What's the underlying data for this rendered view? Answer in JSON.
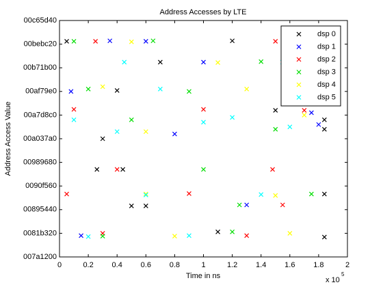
{
  "chart_data": {
    "type": "scatter",
    "title": "Address Accesses by LTE",
    "x_label": "Time in ns",
    "y_label": "Address Access Value",
    "x_multiplier": {
      "base": "x 10",
      "exponent": "5"
    },
    "xlim": [
      0,
      200000
    ],
    "xticks": [
      0,
      {
        "value": 20000,
        "label": "0.2"
      },
      {
        "value": 40000,
        "label": "0.4"
      },
      {
        "value": 60000,
        "label": "0.6"
      },
      {
        "value": 80000,
        "label": "0.8"
      },
      {
        "value": 100000,
        "label": "1"
      },
      {
        "value": 120000,
        "label": "1.2"
      },
      {
        "value": 140000,
        "label": "1.4"
      },
      {
        "value": 160000,
        "label": "1.6"
      },
      {
        "value": 180000,
        "label": "1.8"
      },
      {
        "value": 200000,
        "label": "2"
      }
    ],
    "ylim": [
      8000000,
      13000000
    ],
    "yticks": [
      {
        "value": 8000000,
        "label": "007a1200"
      },
      {
        "value": 8500000,
        "label": "0081b320"
      },
      {
        "value": 9000000,
        "label": "00895440"
      },
      {
        "value": 9500000,
        "label": "0090f560"
      },
      {
        "value": 10000000,
        "label": "00989680"
      },
      {
        "value": 10500000,
        "label": "00a037a0"
      },
      {
        "value": 11000000,
        "label": "00a7d8c0"
      },
      {
        "value": 11500000,
        "label": "00af79e0"
      },
      {
        "value": 12000000,
        "label": "00b71b00"
      },
      {
        "value": 12500000,
        "label": "00bebc20"
      },
      {
        "value": 13000000,
        "label": "00c65d40"
      }
    ],
    "grid": false,
    "legend_position": "northeast",
    "series": [
      {
        "name": "dsp 0",
        "color": "#000000",
        "x": [
          5000,
          120000,
          70000,
          40000,
          150000,
          184000,
          184000,
          30000,
          26000,
          50000,
          60000,
          184000,
          184000,
          110000,
          44000
        ],
        "values": [
          12560000,
          12570000,
          12120000,
          11520000,
          11100000,
          10900000,
          10700000,
          10500000,
          9850000,
          9080000,
          9080000,
          9330000,
          8420000,
          8530000,
          9850000
        ]
      },
      {
        "name": "dsp 1",
        "color": "#0000ff",
        "x": [
          35000,
          60000,
          100000,
          8000,
          180000,
          80000,
          15000,
          130000,
          175000
        ],
        "values": [
          12570000,
          12560000,
          12120000,
          11500000,
          10800000,
          10600000,
          8450000,
          9100000,
          11050000
        ]
      },
      {
        "name": "dsp 2",
        "color": "#ff0000",
        "x": [
          25000,
          150000,
          10000,
          100000,
          170000,
          148000,
          5000,
          90000,
          130000,
          155000,
          30000,
          40000
        ],
        "values": [
          12560000,
          12560000,
          11120000,
          11120000,
          11100000,
          9850000,
          9330000,
          9340000,
          8450000,
          9100000,
          8500000,
          9850000
        ]
      },
      {
        "name": "dsp 3",
        "color": "#00dd00",
        "x": [
          10000,
          65000,
          140000,
          20000,
          90000,
          160000,
          100000,
          50000,
          150000,
          120000,
          30000,
          175000,
          125000
        ],
        "values": [
          12560000,
          12570000,
          12130000,
          11550000,
          11500000,
          11600000,
          9850000,
          10900000,
          10700000,
          8530000,
          8440000,
          9330000,
          9100000
        ]
      },
      {
        "name": "dsp 4",
        "color": "#ffff00",
        "x": [
          50000,
          110000,
          30000,
          130000,
          170000,
          60000,
          60000,
          150000,
          80000,
          160000,
          180000
        ],
        "values": [
          12550000,
          12110000,
          11600000,
          11550000,
          11000000,
          10650000,
          9330000,
          9300000,
          8440000,
          8500000,
          12560000
        ]
      },
      {
        "name": "dsp 5",
        "color": "#00ffff",
        "x": [
          45000,
          155000,
          70000,
          10000,
          100000,
          160000,
          40000,
          120000,
          60000,
          140000,
          90000,
          20000,
          176000
        ],
        "values": [
          12120000,
          12120000,
          11550000,
          10900000,
          10850000,
          10750000,
          10650000,
          10950000,
          9310000,
          9320000,
          8450000,
          8430000,
          11520000
        ]
      }
    ]
  }
}
